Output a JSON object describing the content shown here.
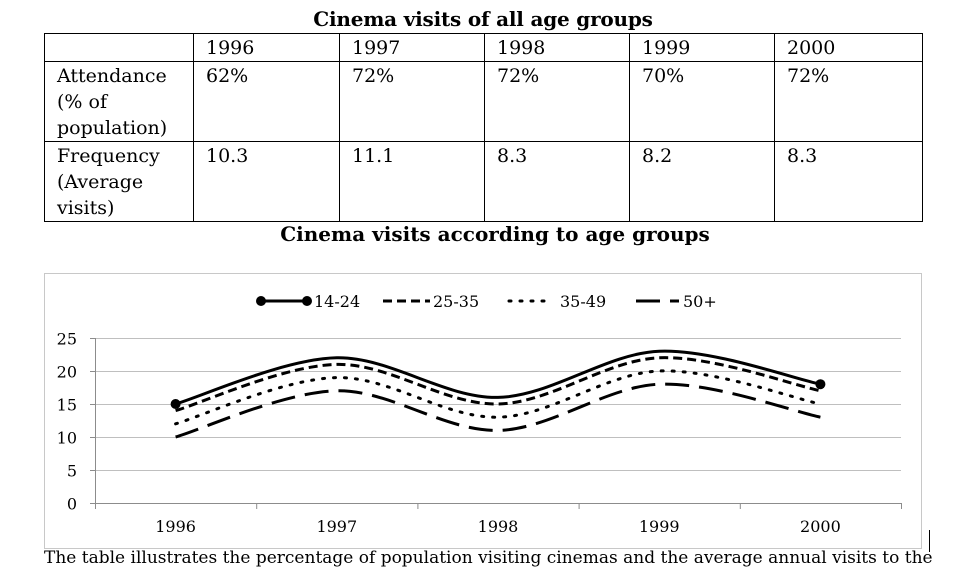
{
  "table": {
    "title": "Cinema visits of all age groups",
    "header": [
      "",
      "1996",
      "1997",
      "1998",
      "1999",
      "2000"
    ],
    "rows": [
      {
        "label": "Attendance\n(% of\npopulation)",
        "values": [
          "62%",
          "72%",
          "72%",
          "70%",
          "72%"
        ]
      },
      {
        "label": "Frequency\n(Average\nvisits)",
        "values": [
          "10.3",
          "11.1",
          "8.3",
          "8.2",
          "8.3"
        ]
      }
    ]
  },
  "chart_data": {
    "type": "line",
    "title": "Cinema visits according to age groups",
    "categories": [
      "1996",
      "1997",
      "1998",
      "1999",
      "2000"
    ],
    "ylim": [
      0,
      25
    ],
    "yticks": [
      0,
      5,
      10,
      15,
      20,
      25
    ],
    "grid": true,
    "legend_position": "top",
    "smooth": true,
    "series": [
      {
        "name": "14-24",
        "values": [
          15,
          22,
          16,
          23,
          18
        ],
        "style": "solid",
        "marker": "circle-ends"
      },
      {
        "name": "25-35",
        "values": [
          14,
          21,
          15,
          22,
          17
        ],
        "style": "dashed"
      },
      {
        "name": "35-49",
        "values": [
          12,
          19,
          13,
          20,
          15
        ],
        "style": "dotted"
      },
      {
        "name": "50+",
        "values": [
          10,
          17,
          11,
          18,
          13
        ],
        "style": "long-dash"
      }
    ]
  },
  "footer_text": "The table illustrates the percentage of population visiting cinemas and the average annual visits to the"
}
